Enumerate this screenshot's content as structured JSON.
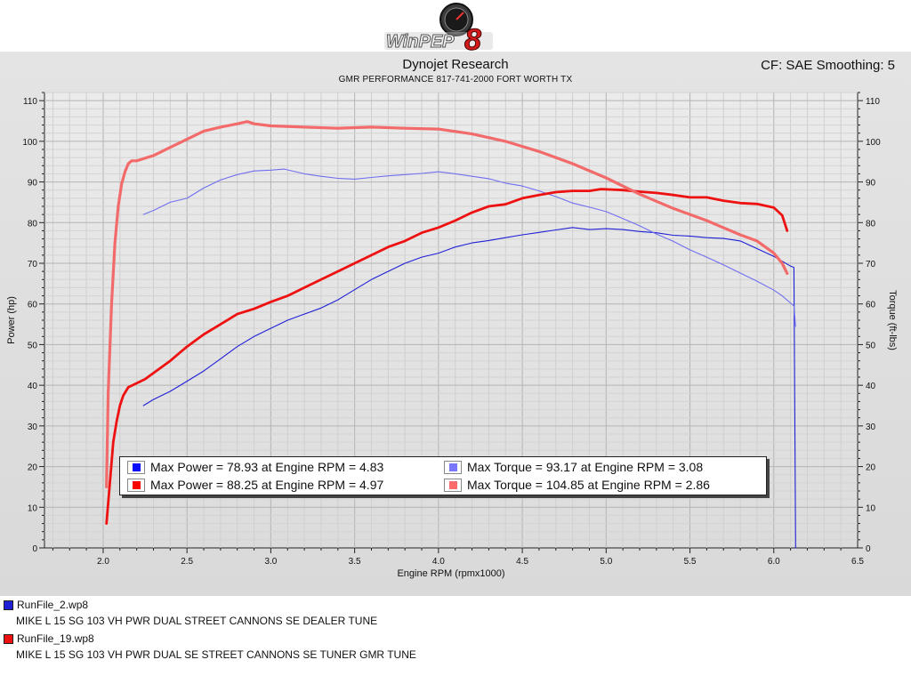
{
  "app": {
    "logo_text": "WinPEP",
    "logo_version": "8"
  },
  "header": {
    "company": "Dynojet Research",
    "subtitle": "GMR PERFORMANCE 817-741-2000  FORT WORTH TX",
    "correction": "CF: SAE Smoothing: 5"
  },
  "colors": {
    "run1_power": "#1f1fd6",
    "run1_torque": "#6f6ff0",
    "run2_power": "#ee1111",
    "run2_torque": "#f26a6a",
    "background": "#dcdcdc"
  },
  "legend": {
    "items": [
      {
        "label": "Max Power = 78.93 at Engine RPM = 4.83",
        "color": "#0a0aff"
      },
      {
        "label": "Max Torque = 93.17 at Engine RPM = 3.08",
        "color": "#7878ff"
      },
      {
        "label": "Max Power = 88.25 at Engine RPM = 4.97",
        "color": "#ff0000"
      },
      {
        "label": "Max Torque = 104.85 at Engine RPM = 2.86",
        "color": "#ff6a6a"
      }
    ]
  },
  "runs": [
    {
      "file": "RunFile_2.wp8",
      "description": "MIKE L 15 SG 103 VH PWR DUAL STREET CANNONS SE DEALER TUNE",
      "color": "#1f1fd6"
    },
    {
      "file": "RunFile_19.wp8",
      "description": "MIKE L 15 SG 103 VH PWR DUAL SE STREET CANNONS SE TUNER GMR TUNE",
      "color": "#ee1111"
    }
  ],
  "chart_data": {
    "type": "line",
    "xlabel": "Engine RPM (rpmx1000)",
    "ylabel": "Power (hp)",
    "y2label": "Torque (ft-lbs)",
    "xlim": [
      1.65,
      6.5
    ],
    "ylim": [
      0,
      112
    ],
    "x_ticks": [
      2.0,
      2.5,
      3.0,
      3.5,
      4.0,
      4.5,
      5.0,
      5.5,
      6.0,
      6.5
    ],
    "y_ticks": [
      0,
      10,
      20,
      30,
      40,
      50,
      60,
      70,
      80,
      90,
      100,
      110
    ],
    "grid": true,
    "series": [
      {
        "file": "RunFile_2.wp8",
        "kind": "power",
        "color": "#1f1fd6",
        "x": [
          2.24,
          2.3,
          2.4,
          2.5,
          2.6,
          2.7,
          2.8,
          2.9,
          3.0,
          3.1,
          3.2,
          3.3,
          3.4,
          3.5,
          3.6,
          3.7,
          3.8,
          3.9,
          4.0,
          4.1,
          4.2,
          4.3,
          4.4,
          4.5,
          4.6,
          4.7,
          4.8,
          4.9,
          5.0,
          5.1,
          5.2,
          5.3,
          5.4,
          5.5,
          5.6,
          5.7,
          5.8,
          5.9,
          6.0,
          6.05,
          6.1,
          6.12,
          6.13
        ],
        "y": [
          35,
          36.5,
          38.5,
          41,
          43.5,
          46.5,
          49.5,
          52,
          54,
          56,
          57.5,
          59,
          61,
          63.5,
          66,
          68,
          70,
          71.5,
          72.5,
          74,
          75,
          75.6,
          76.3,
          77,
          77.6,
          78.2,
          78.8,
          78.3,
          78.5,
          78.3,
          77.8,
          77.5,
          76.9,
          76.7,
          76.3,
          76.1,
          75.5,
          73.6,
          71.7,
          70.5,
          69.3,
          69.0,
          0
        ]
      },
      {
        "file": "RunFile_2.wp8",
        "kind": "torque",
        "color": "#6f6ff0",
        "x": [
          2.24,
          2.3,
          2.4,
          2.5,
          2.6,
          2.7,
          2.8,
          2.9,
          3.0,
          3.08,
          3.2,
          3.3,
          3.4,
          3.5,
          3.6,
          3.7,
          3.8,
          3.9,
          4.0,
          4.1,
          4.2,
          4.3,
          4.4,
          4.5,
          4.6,
          4.7,
          4.8,
          4.9,
          5.0,
          5.1,
          5.2,
          5.3,
          5.4,
          5.5,
          5.6,
          5.7,
          5.8,
          5.9,
          6.0,
          6.05,
          6.12,
          6.13
        ],
        "y": [
          82,
          83,
          85,
          86,
          88.5,
          90.5,
          91.8,
          92.7,
          92.9,
          93.17,
          92,
          91.4,
          90.9,
          90.7,
          91.1,
          91.5,
          91.8,
          92.1,
          92.5,
          92.0,
          91.4,
          90.8,
          89.7,
          89.0,
          87.8,
          86.4,
          84.8,
          83.8,
          82.7,
          81.0,
          79.2,
          77.2,
          75.4,
          73.3,
          71.5,
          69.6,
          67.6,
          65.6,
          63.4,
          62.0,
          59.5,
          54.5
        ]
      },
      {
        "file": "RunFile_19.wp8",
        "kind": "power",
        "color": "#ee1111",
        "x": [
          2.02,
          2.04,
          2.06,
          2.08,
          2.1,
          2.12,
          2.15,
          2.2,
          2.25,
          2.3,
          2.4,
          2.5,
          2.6,
          2.7,
          2.8,
          2.9,
          3.0,
          3.1,
          3.2,
          3.3,
          3.4,
          3.5,
          3.6,
          3.7,
          3.8,
          3.9,
          4.0,
          4.1,
          4.2,
          4.3,
          4.4,
          4.5,
          4.6,
          4.7,
          4.8,
          4.9,
          4.97,
          5.1,
          5.2,
          5.3,
          5.4,
          5.5,
          5.6,
          5.7,
          5.8,
          5.9,
          6.0,
          6.05,
          6.08
        ],
        "y": [
          6,
          16,
          26,
          31,
          35,
          37.5,
          39.5,
          40.5,
          41.5,
          43,
          46,
          49.5,
          52.5,
          55,
          57.5,
          58.8,
          60.5,
          62,
          64,
          66,
          68,
          70,
          72,
          74,
          75.5,
          77.5,
          78.8,
          80.5,
          82.5,
          84,
          84.5,
          86,
          86.8,
          87.5,
          87.8,
          87.8,
          88.25,
          88.0,
          87.6,
          87.3,
          86.8,
          86.2,
          86.2,
          85.4,
          84.8,
          84.6,
          83.7,
          81.8,
          78
        ]
      },
      {
        "file": "RunFile_19.wp8",
        "kind": "torque",
        "color": "#f26a6a",
        "x": [
          2.02,
          2.03,
          2.05,
          2.07,
          2.09,
          2.11,
          2.13,
          2.15,
          2.17,
          2.2,
          2.3,
          2.4,
          2.5,
          2.6,
          2.7,
          2.8,
          2.86,
          2.9,
          3.0,
          3.2,
          3.4,
          3.6,
          3.8,
          4.0,
          4.2,
          4.4,
          4.6,
          4.8,
          5.0,
          5.2,
          5.4,
          5.6,
          5.8,
          5.9,
          6.0,
          6.05,
          6.08
        ],
        "y": [
          15,
          38,
          60,
          75,
          84,
          89.5,
          92.5,
          94.5,
          95.2,
          95.2,
          96.5,
          98.5,
          100.5,
          102.5,
          103.5,
          104.3,
          104.85,
          104.3,
          103.8,
          103.5,
          103.2,
          103.5,
          103.2,
          103.0,
          101.8,
          100.0,
          97.5,
          94.5,
          91,
          87,
          83.5,
          80.5,
          77,
          75.5,
          72.5,
          70,
          67.5
        ]
      }
    ]
  }
}
